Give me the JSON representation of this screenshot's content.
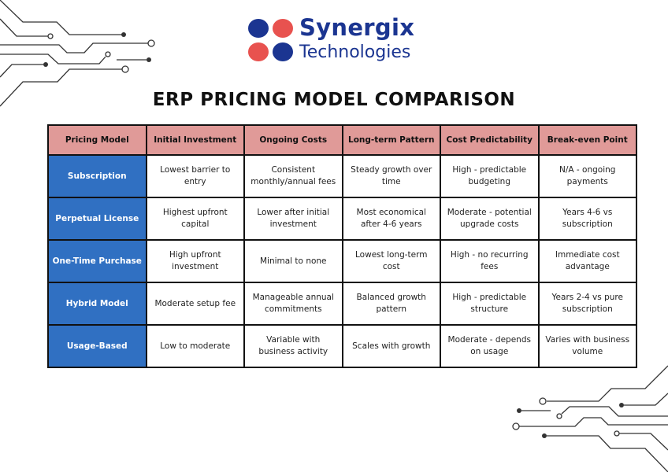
{
  "logo": {
    "name": "Synergix",
    "subtitle": "Technologies",
    "colors": {
      "blue": "#1b3591",
      "red": "#e8524f"
    }
  },
  "title": "ERP PRICING MODEL COMPARISON",
  "table": {
    "headers": [
      "Pricing Model",
      "Initial Investment",
      "Ongoing Costs",
      "Long-term Pattern",
      "Cost Predictability",
      "Break-even Point"
    ],
    "rows": [
      [
        "Subscription",
        "Lowest barrier to entry",
        "Consistent monthly/annual fees",
        "Steady growth over time",
        "High - predictable budgeting",
        "N/A - ongoing payments"
      ],
      [
        "Perpetual License",
        "Highest upfront capital",
        "Lower after initial investment",
        "Most economical after 4-6 years",
        "Moderate - potential upgrade costs",
        "Years 4-6 vs subscription"
      ],
      [
        "One-Time Purchase",
        "High upfront investment",
        "Minimal to none",
        "Lowest long-term cost",
        "High - no recurring fees",
        "Immediate cost advantage"
      ],
      [
        "Hybrid Model",
        "Moderate setup fee",
        "Manageable annual commitments",
        "Balanced growth pattern",
        "High - predictable structure",
        "Years 2-4 vs pure subscription"
      ],
      [
        "Usage-Based",
        "Low to moderate",
        "Variable with business activity",
        "Scales with growth",
        "Moderate - depends on usage",
        "Varies with business volume"
      ]
    ],
    "colors": {
      "header": "#e09a98",
      "row_header": "#3070c2"
    }
  }
}
